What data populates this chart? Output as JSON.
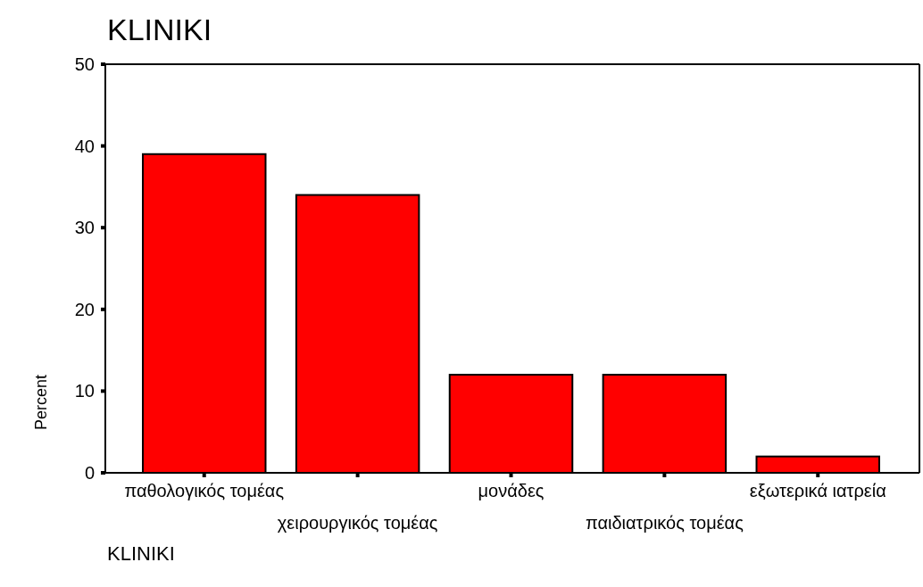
{
  "chart_data": {
    "type": "bar",
    "title": "KLINIKI",
    "xlabel": "KLINIKI",
    "ylabel": "Percent",
    "categories": [
      "παθολογικός τομέας",
      "χειρουργικός τομέας",
      "μονάδες",
      "παιδιατρικός τομέας",
      "εξωτερικά ιατρεία"
    ],
    "values": [
      39,
      34,
      12,
      12,
      2
    ],
    "color": "#ff0000",
    "ylim": [
      0,
      50
    ],
    "yticks": [
      0,
      10,
      20,
      30,
      40,
      50
    ],
    "grid": false
  }
}
